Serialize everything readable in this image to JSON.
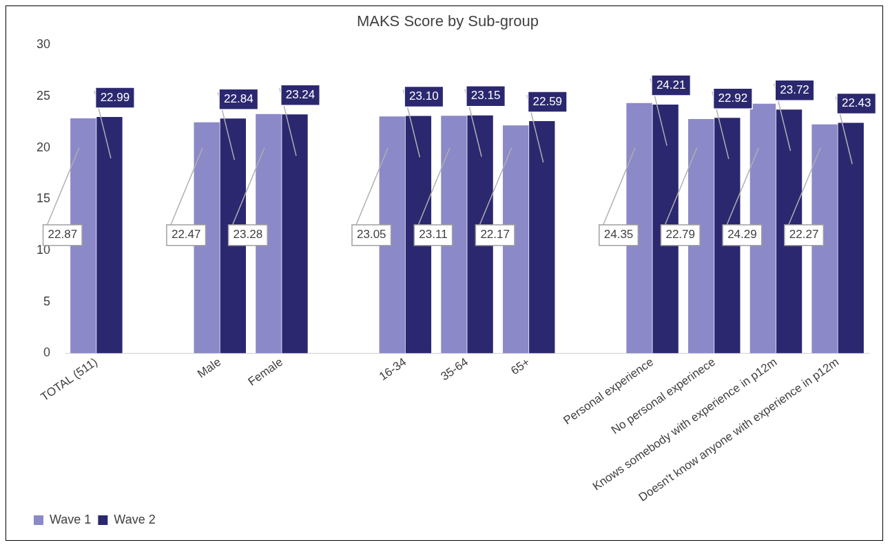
{
  "chart_data": {
    "type": "bar",
    "title": "MAKS Score by Sub-group",
    "categories": [
      "TOTAL (511)",
      null,
      "Male",
      "Female",
      null,
      "16-34",
      "35-64",
      "65+",
      null,
      "Personal experience",
      "No personal experinece",
      "Knows somebody with experience in p12m",
      "Doesn't know anyone with experience in p12m"
    ],
    "series": [
      {
        "name": "Wave 1",
        "color": "#8b89c8",
        "values": [
          22.87,
          null,
          22.47,
          23.28,
          null,
          23.05,
          23.11,
          22.17,
          null,
          24.35,
          22.79,
          24.29,
          22.27
        ],
        "value_labels": [
          "22.87",
          null,
          "22.47",
          "23.28",
          null,
          "23.05",
          "23.11",
          "22.17",
          null,
          "24.35",
          "22.79",
          "24.29",
          "22.27"
        ]
      },
      {
        "name": "Wave 2",
        "color": "#2b2870",
        "values": [
          22.99,
          null,
          22.84,
          23.24,
          null,
          23.1,
          23.15,
          22.59,
          null,
          24.21,
          22.92,
          23.72,
          22.43
        ],
        "value_labels": [
          "22.99",
          null,
          "22.84",
          "23.24",
          null,
          "23.10",
          "23.15",
          "22.59",
          null,
          "24.21",
          "22.92",
          "23.72",
          "22.43"
        ]
      }
    ],
    "ylim": [
      0,
      30
    ],
    "yticks": [
      0,
      5,
      10,
      15,
      20,
      25,
      30
    ],
    "grid": false,
    "legend": "bottom left"
  }
}
